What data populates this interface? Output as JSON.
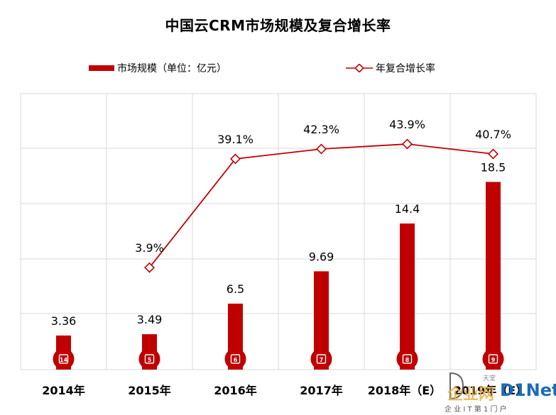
{
  "chart_data": {
    "type": "bar",
    "title": "中国云CRM市场规模及复合增长率",
    "categories": [
      "2014年",
      "2015年",
      "2016年",
      "2017年",
      "2018年（E）",
      "2019年（E）"
    ],
    "category_badges": [
      "14",
      "5",
      "6",
      "7",
      "8",
      "9"
    ],
    "series": [
      {
        "name": "市场规模（单位：亿元）",
        "kind": "bar",
        "values": [
          3.36,
          3.49,
          6.5,
          9.69,
          14.4,
          18.5
        ],
        "labels": [
          "3.36",
          "3.49",
          "6.5",
          "9.69",
          "14.4",
          "18.5"
        ]
      },
      {
        "name": "年复合增长率",
        "kind": "line",
        "values": [
          null,
          3.9,
          39.1,
          42.3,
          43.9,
          40.7
        ],
        "labels": [
          "",
          "3.9%",
          "39.1%",
          "42.3%",
          "43.9%",
          "40.7%"
        ]
      }
    ],
    "grid": true,
    "legend_position": "top",
    "colors": {
      "bar": "#c00000",
      "line": "#c00000",
      "grid": "#d9d9d9"
    }
  },
  "watermark": {
    "main": "企业网",
    "brand": "D1Net",
    "sub": "企 业 I T 第 1 门 户",
    "mini": "天堂"
  }
}
